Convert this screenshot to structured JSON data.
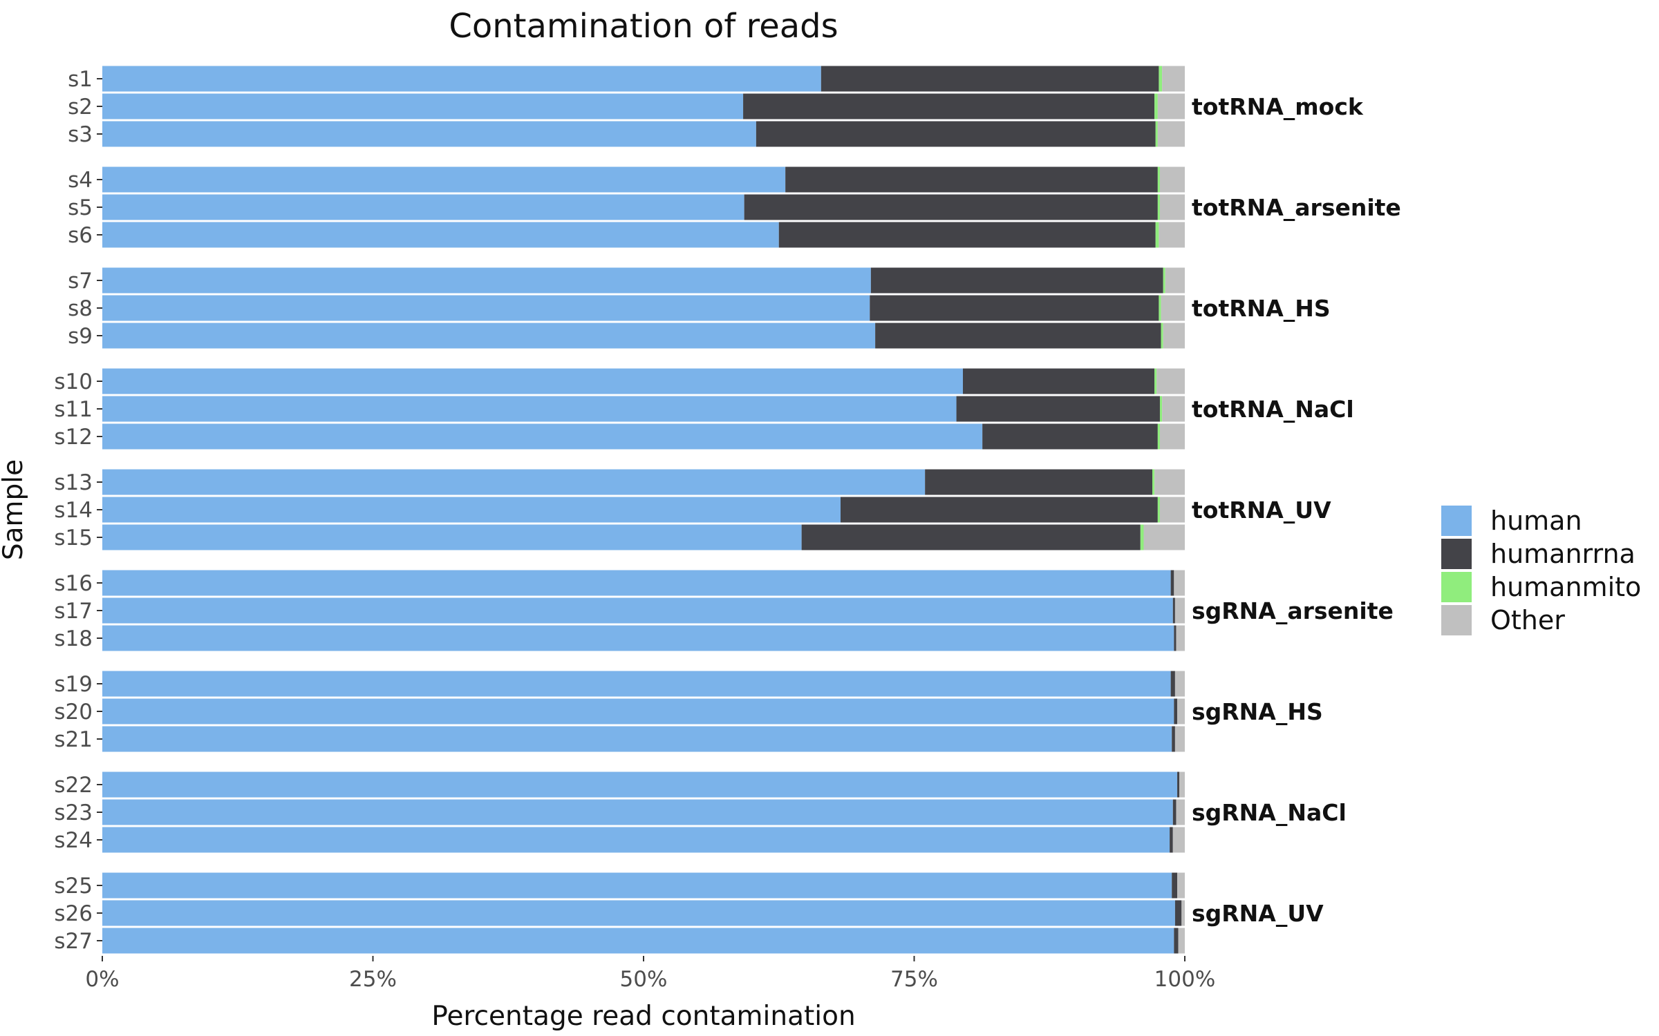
{
  "chart_data": {
    "type": "bar",
    "orientation": "horizontal",
    "stacked": true,
    "title": "Contamination of reads",
    "xlabel": "Percentage read contamination",
    "ylabel": "Sample",
    "xlim": [
      0,
      100
    ],
    "x_ticks": [
      "0%",
      "25%",
      "50%",
      "75%",
      "100%"
    ],
    "grid": false,
    "legend_position": "right",
    "series": [
      {
        "name": "human",
        "color": "#7BB3EA"
      },
      {
        "name": "humanrrna",
        "color": "#434348"
      },
      {
        "name": "humanmito",
        "color": "#90ED7D"
      },
      {
        "name": "Other",
        "color": "#C0C0C0"
      }
    ],
    "groups": [
      {
        "label": "totRNA_mock",
        "samples": [
          {
            "sample": "s1",
            "values": [
              66.4,
              31.2,
              0.3,
              2.1
            ]
          },
          {
            "sample": "s2",
            "values": [
              59.2,
              38.0,
              0.3,
              2.5
            ]
          },
          {
            "sample": "s3",
            "values": [
              60.4,
              36.9,
              0.2,
              2.5
            ]
          }
        ]
      },
      {
        "label": "totRNA_arsenite",
        "samples": [
          {
            "sample": "s4",
            "values": [
              63.1,
              34.4,
              0.2,
              2.3
            ]
          },
          {
            "sample": "s5",
            "values": [
              59.3,
              38.2,
              0.2,
              2.3
            ]
          },
          {
            "sample": "s6",
            "values": [
              62.5,
              34.8,
              0.3,
              2.4
            ]
          }
        ]
      },
      {
        "label": "totRNA_HS",
        "samples": [
          {
            "sample": "s7",
            "values": [
              71.0,
              27.0,
              0.2,
              1.8
            ]
          },
          {
            "sample": "s8",
            "values": [
              70.9,
              26.7,
              0.2,
              2.2
            ]
          },
          {
            "sample": "s9",
            "values": [
              71.4,
              26.4,
              0.2,
              2.0
            ]
          }
        ]
      },
      {
        "label": "totRNA_NaCl",
        "samples": [
          {
            "sample": "s10",
            "values": [
              79.5,
              17.7,
              0.2,
              2.6
            ]
          },
          {
            "sample": "s11",
            "values": [
              78.9,
              18.8,
              0.2,
              2.1
            ]
          },
          {
            "sample": "s12",
            "values": [
              81.3,
              16.2,
              0.2,
              2.3
            ]
          }
        ]
      },
      {
        "label": "totRNA_UV",
        "samples": [
          {
            "sample": "s13",
            "values": [
              76.0,
              21.0,
              0.2,
              2.8
            ]
          },
          {
            "sample": "s14",
            "values": [
              68.2,
              29.3,
              0.2,
              2.3
            ]
          },
          {
            "sample": "s15",
            "values": [
              64.6,
              31.3,
              0.3,
              3.8
            ]
          }
        ]
      },
      {
        "label": "sgRNA_arsenite",
        "samples": [
          {
            "sample": "s16",
            "values": [
              98.7,
              0.3,
              0.0,
              1.0
            ]
          },
          {
            "sample": "s17",
            "values": [
              98.9,
              0.2,
              0.0,
              0.9
            ]
          },
          {
            "sample": "s18",
            "values": [
              99.0,
              0.2,
              0.0,
              0.8
            ]
          }
        ]
      },
      {
        "label": "sgRNA_HS",
        "samples": [
          {
            "sample": "s19",
            "values": [
              98.7,
              0.4,
              0.0,
              0.9
            ]
          },
          {
            "sample": "s20",
            "values": [
              99.0,
              0.3,
              0.0,
              0.7
            ]
          },
          {
            "sample": "s21",
            "values": [
              98.8,
              0.3,
              0.0,
              0.9
            ]
          }
        ]
      },
      {
        "label": "sgRNA_NaCl",
        "samples": [
          {
            "sample": "s22",
            "values": [
              99.3,
              0.2,
              0.0,
              0.5
            ]
          },
          {
            "sample": "s23",
            "values": [
              98.9,
              0.3,
              0.0,
              0.8
            ]
          },
          {
            "sample": "s24",
            "values": [
              98.6,
              0.3,
              0.0,
              1.1
            ]
          }
        ]
      },
      {
        "label": "sgRNA_UV",
        "samples": [
          {
            "sample": "s25",
            "values": [
              98.8,
              0.5,
              0.0,
              0.7
            ]
          },
          {
            "sample": "s26",
            "values": [
              99.1,
              0.6,
              0.0,
              0.3
            ]
          },
          {
            "sample": "s27",
            "values": [
              99.0,
              0.4,
              0.0,
              0.6
            ]
          }
        ]
      }
    ]
  }
}
